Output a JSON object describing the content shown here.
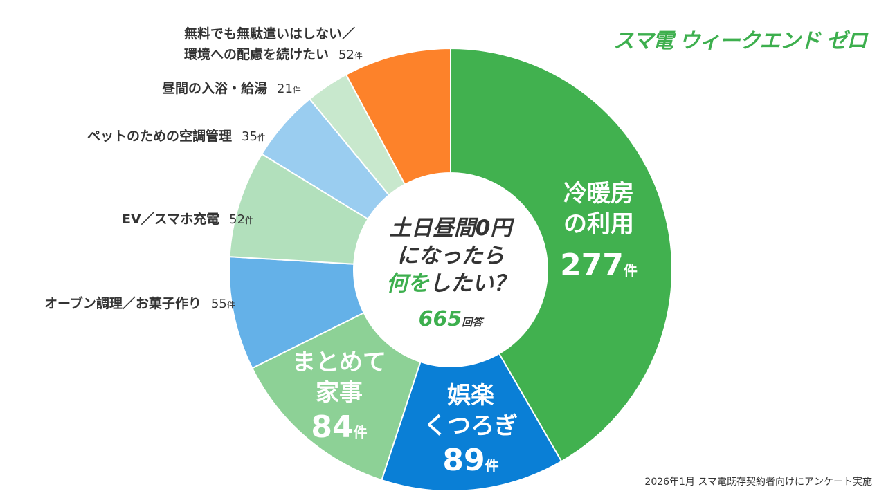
{
  "logo": "スマ電 ウィークエンド ゼロ",
  "footnote": "2026年1月 スマ電既存契約者向けにアンケート実施",
  "center": {
    "line1": "土日昼間0円",
    "line2": "になったら",
    "line3a": "何を",
    "line3b": "したい？",
    "total": "665",
    "total_unit": "回答"
  },
  "unit": "件",
  "chart_data": {
    "type": "pie",
    "donut": true,
    "title": "土日昼間0円になったら何をしたい？",
    "total": 665,
    "start": "top, clockwise",
    "slices": [
      {
        "label": "冷暖房の利用",
        "label_a": "冷暖房",
        "label_b": "の利用",
        "value": 277,
        "color": "#41b14f"
      },
      {
        "label": "娯楽くつろぎ",
        "label_a": "娯楽",
        "label_b": "くつろぎ",
        "value": 89,
        "color": "#0a7fd6"
      },
      {
        "label": "まとめて家事",
        "label_a": "まとめて",
        "label_b": "家事",
        "value": 84,
        "color": "#8dd196"
      },
      {
        "label": "オーブン調理／お菓子作り",
        "value": 55,
        "color": "#64b1e8"
      },
      {
        "label": "EV／スマホ充電",
        "value": 52,
        "color": "#b2e0bc"
      },
      {
        "label": "ペットのための空調管理",
        "value": 35,
        "color": "#9acdf0"
      },
      {
        "label": "昼間の入浴・給湯",
        "value": 21,
        "color": "#c8e8cd"
      },
      {
        "label": "無料でも無駄遣いはしない／環境への配慮を続けたい",
        "label_a": "無料でも無駄遣いはしない／",
        "label_b": "環境への配慮を続けたい",
        "value": 52,
        "color": "#fd822a"
      }
    ]
  }
}
